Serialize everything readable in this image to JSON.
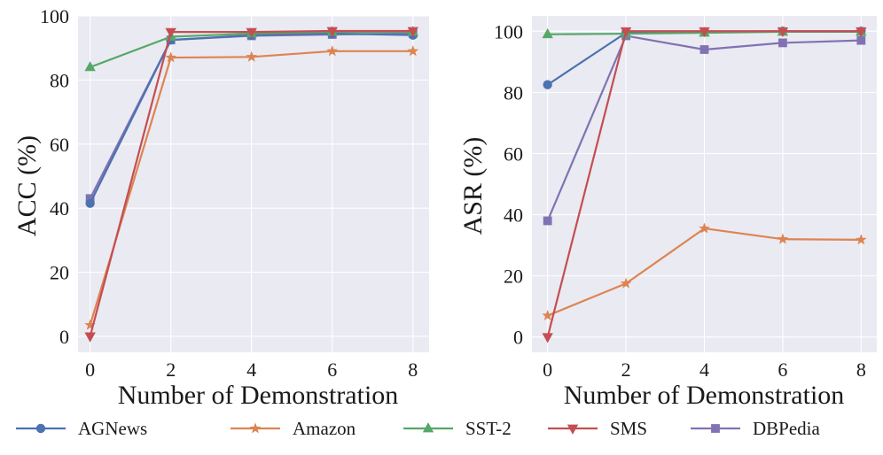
{
  "chart_data": [
    {
      "type": "line",
      "xlabel": "Number of Demonstration",
      "ylabel": "ACC (%)",
      "xlim": [
        -0.3,
        8.4
      ],
      "ylim": [
        -5,
        100
      ],
      "xticks": [
        0,
        2,
        4,
        6,
        8
      ],
      "yticks": [
        0,
        20,
        40,
        60,
        80,
        100
      ],
      "grid": true,
      "x": [
        0,
        2,
        4,
        6,
        8
      ],
      "series": [
        {
          "name": "AGNews",
          "values": [
            41.5,
            92.5,
            94.0,
            94.5,
            94.0
          ]
        },
        {
          "name": "Amazon",
          "values": [
            3.5,
            87.0,
            87.2,
            89.0,
            89.0
          ]
        },
        {
          "name": "SST-2",
          "values": [
            84.0,
            93.5,
            94.5,
            95.0,
            95.0
          ]
        },
        {
          "name": "SMS",
          "values": [
            0.0,
            95.0,
            95.0,
            95.3,
            95.3
          ]
        },
        {
          "name": "DBPedia",
          "values": [
            43.0,
            92.5,
            93.8,
            94.2,
            94.5
          ]
        }
      ]
    },
    {
      "type": "line",
      "xlabel": "Number of Demonstration",
      "ylabel": "ASR (%)",
      "xlim": [
        -0.4,
        8.4
      ],
      "ylim": [
        -5,
        105
      ],
      "xticks": [
        0,
        2,
        4,
        6,
        8
      ],
      "yticks": [
        0,
        20,
        40,
        60,
        80,
        100
      ],
      "grid": true,
      "x": [
        0,
        2,
        4,
        6,
        8
      ],
      "series": [
        {
          "name": "AGNews",
          "values": [
            82.5,
            99.5,
            99.8,
            100.0,
            100.0
          ]
        },
        {
          "name": "Amazon",
          "values": [
            7.0,
            17.5,
            35.5,
            32.0,
            31.8
          ]
        },
        {
          "name": "SST-2",
          "values": [
            99.0,
            99.2,
            99.5,
            99.8,
            99.8
          ]
        },
        {
          "name": "SMS",
          "values": [
            0.0,
            100.0,
            100.0,
            100.0,
            100.0
          ]
        },
        {
          "name": "DBPedia",
          "values": [
            38.0,
            98.5,
            94.0,
            96.2,
            97.0
          ]
        }
      ]
    }
  ],
  "legend": {
    "items": [
      {
        "name": "AGNews",
        "color": "#4c72b0",
        "marker": "circle"
      },
      {
        "name": "Amazon",
        "color": "#dd8452",
        "marker": "star"
      },
      {
        "name": "SST-2",
        "color": "#55a868",
        "marker": "triangle-up"
      },
      {
        "name": "SMS",
        "color": "#c44e52",
        "marker": "triangle-down"
      },
      {
        "name": "DBPedia",
        "color": "#8172b3",
        "marker": "square"
      }
    ]
  },
  "style": {
    "plot_background": "#eaeaf2",
    "grid_color": "#ffffff"
  }
}
